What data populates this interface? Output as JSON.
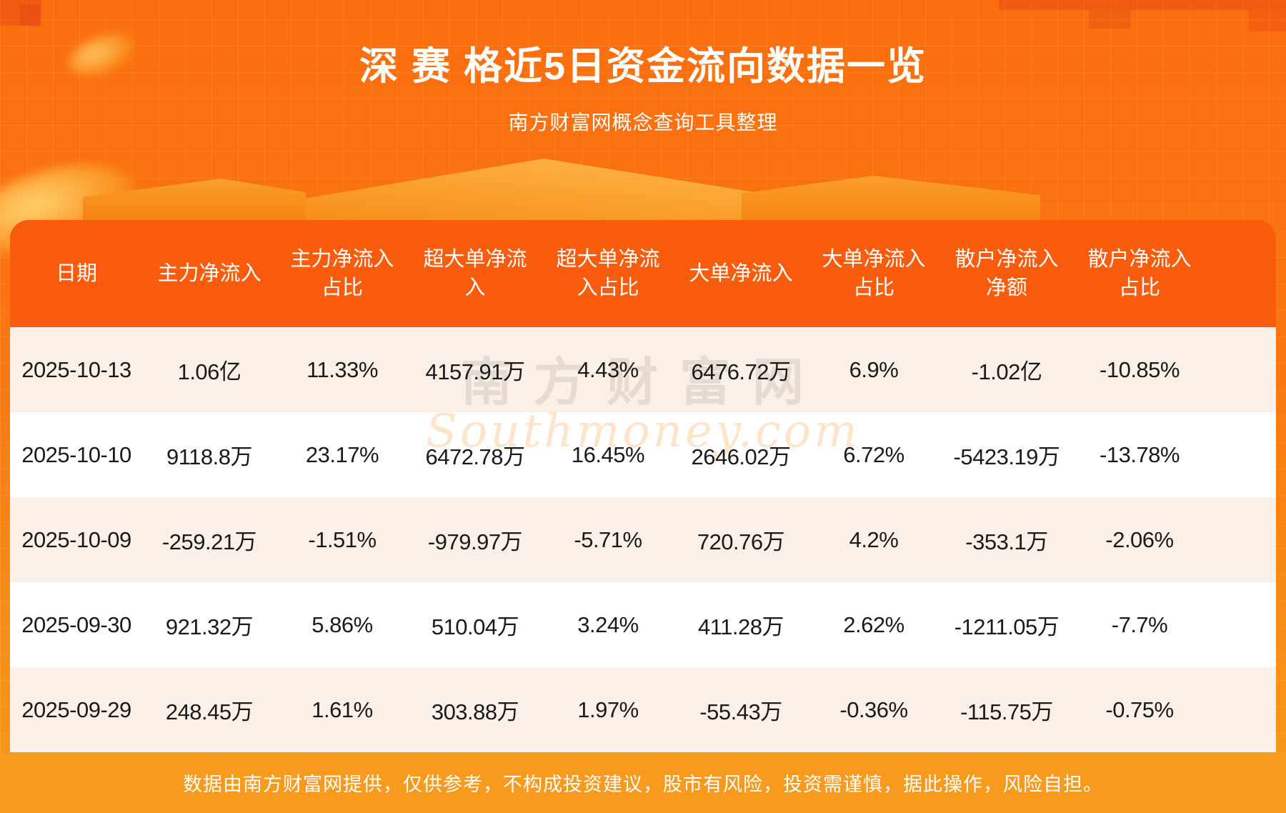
{
  "page": {
    "title": "深 赛 格近5日资金流向数据一览",
    "subtitle": "南方财富网概念查询工具整理",
    "disclaimer": "数据由南方财富网提供，仅供参考，不构成投资建议，股市有风险，投资需谨慎，据此操作，风险自担。"
  },
  "watermark": {
    "cn": "南方财富网",
    "en": "Southmoney.com"
  },
  "colors": {
    "background_top": "#FB6D0E",
    "background_bottom": "#F79A1D",
    "table_header": "#F85C0C",
    "row_beige": "#FAF0E7",
    "row_white": "#FFFFFF",
    "text_dark": "#1A1A1A",
    "text_white": "#FFFFFF"
  },
  "table": {
    "headers": [
      [
        "日期"
      ],
      [
        "主力净流入"
      ],
      [
        "主力净流入",
        "占比"
      ],
      [
        "超大单净流",
        "入"
      ],
      [
        "超大单净流",
        "入占比"
      ],
      [
        "大单净流入"
      ],
      [
        "大单净流入",
        "占比"
      ],
      [
        "散户净流入",
        "净额"
      ],
      [
        "散户净流入",
        "占比"
      ]
    ]
  },
  "chart_data": {
    "type": "table",
    "title": "深 赛 格近5日资金流向数据一览",
    "columns": [
      "日期",
      "主力净流入",
      "主力净流入占比",
      "超大单净流入",
      "超大单净流入占比",
      "大单净流入",
      "大单净流入占比",
      "散户净流入净额",
      "散户净流入占比"
    ],
    "rows": [
      [
        "2025-10-13",
        "1.06亿",
        "11.33%",
        "4157.91万",
        "4.43%",
        "6476.72万",
        "6.9%",
        "-1.02亿",
        "-10.85%"
      ],
      [
        "2025-10-10",
        "9118.8万",
        "23.17%",
        "6472.78万",
        "16.45%",
        "2646.02万",
        "6.72%",
        "-5423.19万",
        "-13.78%"
      ],
      [
        "2025-10-09",
        "-259.21万",
        "-1.51%",
        "-979.97万",
        "-5.71%",
        "720.76万",
        "4.2%",
        "-353.1万",
        "-2.06%"
      ],
      [
        "2025-09-30",
        "921.32万",
        "5.86%",
        "510.04万",
        "3.24%",
        "411.28万",
        "2.62%",
        "-1211.05万",
        "-7.7%"
      ],
      [
        "2025-09-29",
        "248.45万",
        "1.61%",
        "303.88万",
        "1.97%",
        "-55.43万",
        "-0.36%",
        "-115.75万",
        "-0.75%"
      ]
    ]
  }
}
